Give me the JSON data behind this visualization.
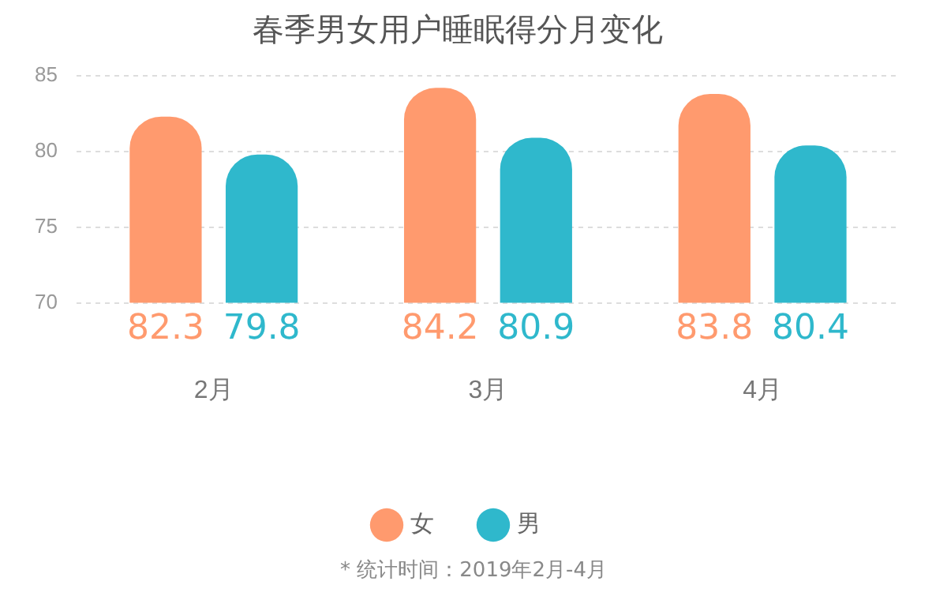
{
  "chart_data": {
    "type": "bar",
    "title": "春季男女用户睡眠得分月变化",
    "categories": [
      "2月",
      "3月",
      "4月"
    ],
    "series": [
      {
        "name": "女",
        "color": "#ff9a6e",
        "values": [
          82.3,
          84.2,
          83.8
        ]
      },
      {
        "name": "男",
        "color": "#2fb8cc",
        "values": [
          79.8,
          80.9,
          80.4
        ]
      }
    ],
    "ylim": [
      70,
      85
    ],
    "yticks": [
      70,
      75,
      80,
      85
    ],
    "grid": "y",
    "legend": "bottom",
    "data_labels": true,
    "annotations": [
      "* 统计时间：2019年2月-4月"
    ]
  }
}
